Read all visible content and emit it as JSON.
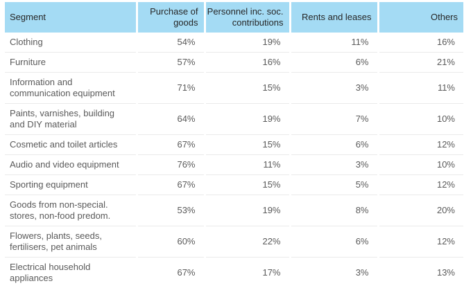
{
  "colors": {
    "header_bg": "#a4dbf4",
    "header_text": "#262626",
    "body_text": "#595959",
    "row_divider": "#eaeaea"
  },
  "chart_data": {
    "type": "table",
    "columns": [
      "Segment",
      "Purchase of goods",
      "Personnel inc. soc. contributions",
      "Rents and leases",
      "Others"
    ],
    "rows": [
      {
        "segment": "Clothing",
        "values": [
          "54%",
          "19%",
          "11%",
          "16%"
        ]
      },
      {
        "segment": "Furniture",
        "values": [
          "57%",
          "16%",
          "6%",
          "21%"
        ]
      },
      {
        "segment": "Information and communication equipment",
        "values": [
          "71%",
          "15%",
          "3%",
          "11%"
        ]
      },
      {
        "segment": "Paints, varnishes, building and DIY material",
        "values": [
          "64%",
          "19%",
          "7%",
          "10%"
        ]
      },
      {
        "segment": "Cosmetic and toilet articles",
        "values": [
          "67%",
          "15%",
          "6%",
          "12%"
        ]
      },
      {
        "segment": "Audio and video equipment",
        "values": [
          "76%",
          "11%",
          "3%",
          "10%"
        ]
      },
      {
        "segment": "Sporting equipment",
        "values": [
          "67%",
          "15%",
          "5%",
          "12%"
        ]
      },
      {
        "segment": "Goods from non-special. stores, non-food predom.",
        "values": [
          "53%",
          "19%",
          "8%",
          "20%"
        ]
      },
      {
        "segment": "Flowers, plants, seeds, fertilisers, pet animals",
        "values": [
          "60%",
          "22%",
          "6%",
          "12%"
        ]
      },
      {
        "segment": "Electrical household appliances",
        "values": [
          "67%",
          "17%",
          "3%",
          "13%"
        ]
      }
    ]
  }
}
